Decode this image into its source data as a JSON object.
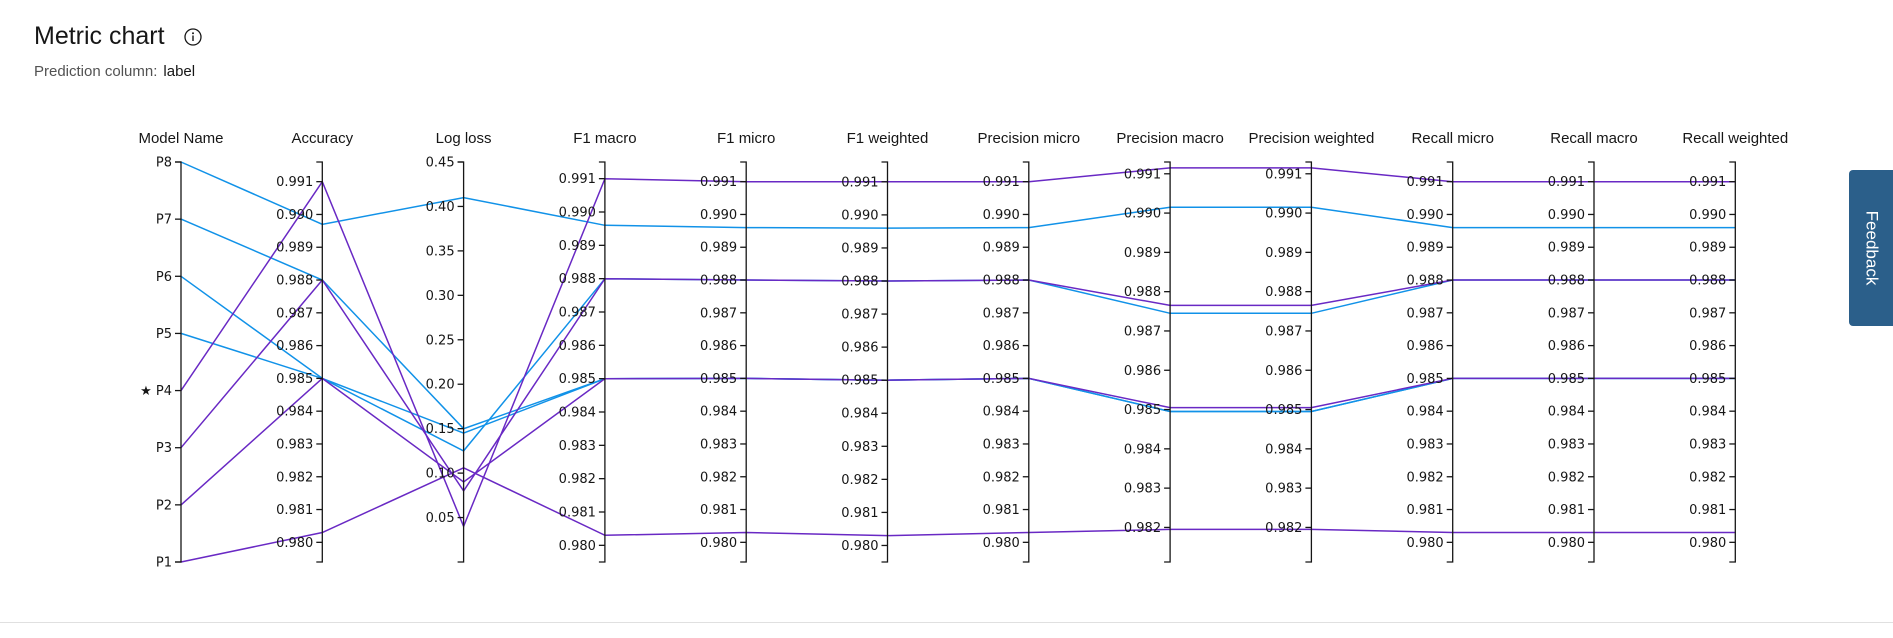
{
  "header": {
    "title": "Metric chart",
    "info_icon": "info-circle-icon",
    "prediction_label": "Prediction column:",
    "prediction_value": "label"
  },
  "feedback": {
    "label": "Feedback"
  },
  "chart_data": {
    "type": "parallel-coordinates",
    "line_colors": [
      "#1192e8",
      "#6929c4"
    ],
    "axes": [
      {
        "key": "model",
        "label": "Model Name",
        "categorical": true,
        "categories": [
          "P1",
          "P2",
          "P3",
          "P4",
          "P5",
          "P6",
          "P7",
          "P8"
        ],
        "tick_labels": [
          "P1",
          "P2",
          "P3",
          "★ P4",
          "P5",
          "P6",
          "P7",
          "P8"
        ]
      },
      {
        "key": "accuracy",
        "label": "Accuracy",
        "domain": [
          0.9794,
          0.9916
        ],
        "ticks": [
          0.98,
          0.981,
          0.982,
          0.983,
          0.984,
          0.985,
          0.986,
          0.987,
          0.988,
          0.989,
          0.99,
          0.991
        ]
      },
      {
        "key": "logloss",
        "label": "Log loss",
        "domain": [
          0.0,
          0.45
        ],
        "ticks": [
          0.05,
          0.1,
          0.15,
          0.2,
          0.25,
          0.3,
          0.35,
          0.4,
          0.45
        ]
      },
      {
        "key": "f1_macro",
        "label": "F1 macro",
        "domain": [
          0.9795,
          0.9915
        ],
        "ticks": [
          0.98,
          0.981,
          0.982,
          0.983,
          0.984,
          0.985,
          0.986,
          0.987,
          0.988,
          0.989,
          0.99,
          0.991
        ]
      },
      {
        "key": "f1_micro",
        "label": "F1 micro",
        "domain": [
          0.9794,
          0.9916
        ],
        "ticks": [
          0.98,
          0.981,
          0.982,
          0.983,
          0.984,
          0.985,
          0.986,
          0.987,
          0.988,
          0.989,
          0.99,
          0.991
        ]
      },
      {
        "key": "f1_weighted",
        "label": "F1 weighted",
        "domain": [
          0.9795,
          0.9916
        ],
        "ticks": [
          0.98,
          0.981,
          0.982,
          0.983,
          0.984,
          0.985,
          0.986,
          0.987,
          0.988,
          0.989,
          0.99,
          0.991
        ]
      },
      {
        "key": "precision_micro",
        "label": "Precision micro",
        "domain": [
          0.9794,
          0.9916
        ],
        "ticks": [
          0.98,
          0.981,
          0.982,
          0.983,
          0.984,
          0.985,
          0.986,
          0.987,
          0.988,
          0.989,
          0.99,
          0.991
        ]
      },
      {
        "key": "precision_macro",
        "label": "Precision macro",
        "domain": [
          0.98137,
          0.99155
        ],
        "ticks": [
          0.98225,
          0.98325,
          0.98425,
          0.98525,
          0.98625,
          0.98725,
          0.98825,
          0.98925,
          0.99025,
          0.99125
        ],
        "tick_labels": [
          "0.982",
          "0.983",
          "0.984",
          "0.985",
          "0.986",
          "0.987",
          "0.988",
          "0.989",
          "0.990",
          "0.991"
        ]
      },
      {
        "key": "precision_weighted",
        "label": "Precision weighted",
        "domain": [
          0.98137,
          0.99155
        ],
        "ticks": [
          0.98225,
          0.98325,
          0.98425,
          0.98525,
          0.98625,
          0.98725,
          0.98825,
          0.98925,
          0.99025,
          0.99125
        ],
        "tick_labels": [
          "0.982",
          "0.983",
          "0.984",
          "0.985",
          "0.986",
          "0.987",
          "0.988",
          "0.989",
          "0.990",
          "0.991"
        ]
      },
      {
        "key": "recall_micro",
        "label": "Recall micro",
        "domain": [
          0.9794,
          0.9916
        ],
        "ticks": [
          0.98,
          0.981,
          0.982,
          0.983,
          0.984,
          0.985,
          0.986,
          0.987,
          0.988,
          0.989,
          0.99,
          0.991
        ]
      },
      {
        "key": "recall_macro",
        "label": "Recall macro",
        "domain": [
          0.9794,
          0.9916
        ],
        "ticks": [
          0.98,
          0.981,
          0.982,
          0.983,
          0.984,
          0.985,
          0.986,
          0.987,
          0.988,
          0.989,
          0.99,
          0.991
        ]
      },
      {
        "key": "recall_weighted",
        "label": "Recall weighted",
        "domain": [
          0.9794,
          0.9916
        ],
        "ticks": [
          0.98,
          0.981,
          0.982,
          0.983,
          0.984,
          0.985,
          0.986,
          0.987,
          0.988,
          0.989,
          0.99,
          0.991
        ]
      }
    ],
    "series": [
      {
        "model": "P8",
        "color": "#1192e8",
        "values": {
          "accuracy": 0.9897,
          "logloss": 0.41,
          "f1_macro": 0.9896,
          "f1_micro": 0.9896,
          "f1_weighted": 0.9896,
          "precision_micro": 0.9896,
          "precision_macro": 0.9904,
          "precision_weighted": 0.9904,
          "recall_micro": 0.9896,
          "recall_macro": 0.9896,
          "recall_weighted": 0.9896
        }
      },
      {
        "model": "P7",
        "color": "#1192e8",
        "values": {
          "accuracy": 0.988,
          "logloss": 0.15,
          "f1_macro": 0.985,
          "f1_micro": 0.985,
          "f1_weighted": 0.985,
          "precision_micro": 0.985,
          "precision_macro": 0.9852,
          "precision_weighted": 0.9852,
          "recall_micro": 0.985,
          "recall_macro": 0.985,
          "recall_weighted": 0.985
        }
      },
      {
        "model": "P6",
        "color": "#1192e8",
        "values": {
          "accuracy": 0.985,
          "logloss": 0.125,
          "f1_macro": 0.988,
          "f1_micro": 0.988,
          "f1_weighted": 0.988,
          "precision_micro": 0.988,
          "precision_macro": 0.9877,
          "precision_weighted": 0.9877,
          "recall_micro": 0.988,
          "recall_macro": 0.988,
          "recall_weighted": 0.988
        }
      },
      {
        "model": "P5",
        "color": "#1192e8",
        "values": {
          "accuracy": 0.985,
          "logloss": 0.145,
          "f1_macro": 0.985,
          "f1_micro": 0.985,
          "f1_weighted": 0.985,
          "precision_micro": 0.985,
          "precision_macro": 0.9852,
          "precision_weighted": 0.9852,
          "recall_micro": 0.985,
          "recall_macro": 0.985,
          "recall_weighted": 0.985
        }
      },
      {
        "model": "P4",
        "color": "#6929c4",
        "values": {
          "accuracy": 0.991,
          "logloss": 0.04,
          "f1_macro": 0.991,
          "f1_micro": 0.991,
          "f1_weighted": 0.991,
          "precision_micro": 0.991,
          "precision_macro": 0.9914,
          "precision_weighted": 0.9914,
          "recall_micro": 0.991,
          "recall_macro": 0.991,
          "recall_weighted": 0.991
        }
      },
      {
        "model": "P3",
        "color": "#6929c4",
        "values": {
          "accuracy": 0.988,
          "logloss": 0.08,
          "f1_macro": 0.988,
          "f1_micro": 0.988,
          "f1_weighted": 0.988,
          "precision_micro": 0.988,
          "precision_macro": 0.9879,
          "precision_weighted": 0.9879,
          "recall_micro": 0.988,
          "recall_macro": 0.988,
          "recall_weighted": 0.988
        }
      },
      {
        "model": "P2",
        "color": "#6929c4",
        "values": {
          "accuracy": 0.985,
          "logloss": 0.09,
          "f1_macro": 0.985,
          "f1_micro": 0.985,
          "f1_weighted": 0.985,
          "precision_micro": 0.985,
          "precision_macro": 0.9853,
          "precision_weighted": 0.9853,
          "recall_micro": 0.985,
          "recall_macro": 0.985,
          "recall_weighted": 0.985
        }
      },
      {
        "model": "P1",
        "color": "#6929c4",
        "values": {
          "accuracy": 0.9803,
          "logloss": 0.106,
          "f1_macro": 0.9803,
          "f1_micro": 0.9803,
          "f1_weighted": 0.9803,
          "precision_micro": 0.9803,
          "precision_macro": 0.9822,
          "precision_weighted": 0.9822,
          "recall_micro": 0.9803,
          "recall_macro": 0.9803,
          "recall_weighted": 0.9803
        }
      }
    ]
  }
}
